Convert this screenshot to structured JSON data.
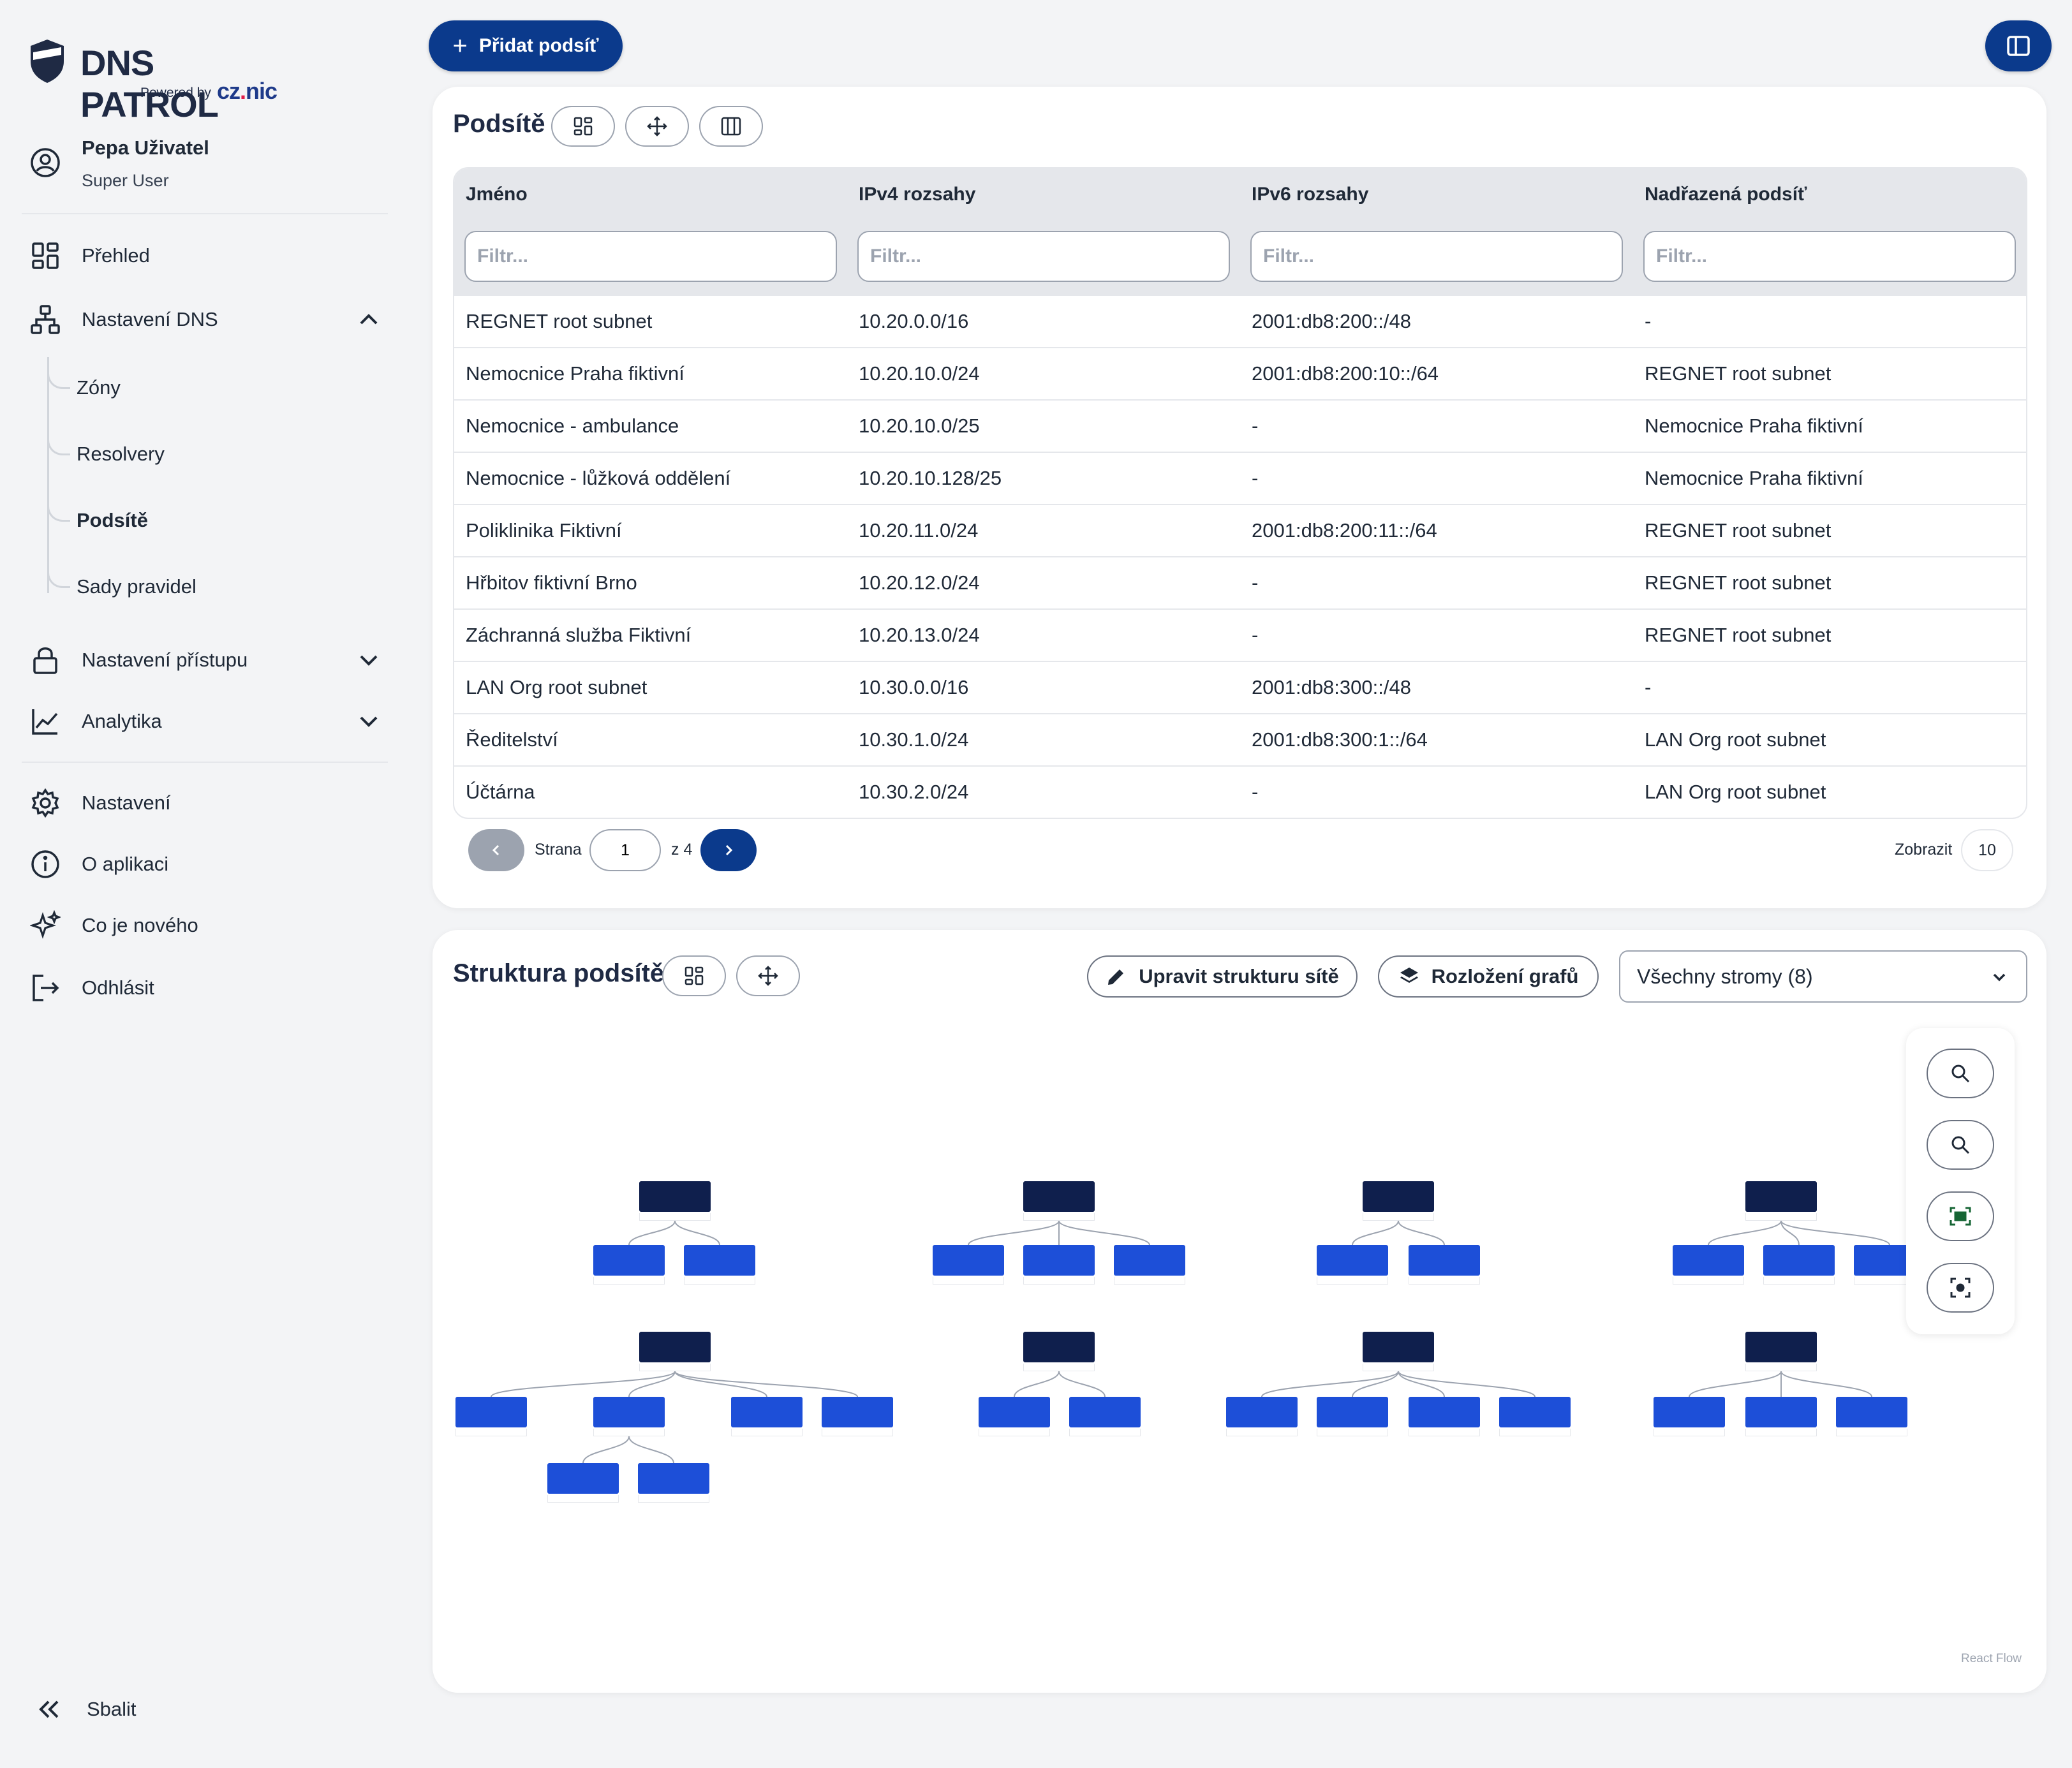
{
  "brand": {
    "name": "DNS PATROL",
    "powered_by": "Powered by",
    "partner_a": "cz",
    "partner_dot": ".",
    "partner_b": "nic"
  },
  "user": {
    "name": "Pepa Uživatel",
    "role": "Super User"
  },
  "nav": {
    "overview": "Přehled",
    "dns_settings": "Nastavení DNS",
    "dns_sub": [
      "Zóny",
      "Resolvery",
      "Podsítě",
      "Sady pravidel"
    ],
    "access": "Nastavení přístupu",
    "analytics": "Analytika",
    "settings": "Nastavení",
    "about": "O aplikaci",
    "whats_new": "Co je nového",
    "logout": "Odhlásit",
    "collapse": "Sbalit"
  },
  "toolbar": {
    "add_subnet": "Přidat podsíť"
  },
  "subnets": {
    "title": "Podsítě",
    "columns": [
      "Jméno",
      "IPv4 rozsahy",
      "IPv6 rozsahy",
      "Nadřazená podsíť"
    ],
    "filter_placeholder": "Filtr...",
    "rows": [
      [
        "REGNET root subnet",
        "10.20.0.0/16",
        "2001:db8:200::/48",
        "-"
      ],
      [
        "Nemocnice Praha fiktivní",
        "10.20.10.0/24",
        "2001:db8:200:10::/64",
        "REGNET root subnet"
      ],
      [
        "Nemocnice - ambulance",
        "10.20.10.0/25",
        "-",
        "Nemocnice Praha fiktivní"
      ],
      [
        "Nemocnice - lůžková oddělení",
        "10.20.10.128/25",
        "-",
        "Nemocnice Praha fiktivní"
      ],
      [
        "Poliklinika Fiktivní",
        "10.20.11.0/24",
        "2001:db8:200:11::/64",
        "REGNET root subnet"
      ],
      [
        "Hřbitov fiktivní Brno",
        "10.20.12.0/24",
        "-",
        "REGNET root subnet"
      ],
      [
        "Záchranná služba Fiktivní",
        "10.20.13.0/24",
        "-",
        "REGNET root subnet"
      ],
      [
        "LAN Org root subnet",
        "10.30.0.0/16",
        "2001:db8:300::/48",
        "-"
      ],
      [
        "Ředitelství",
        "10.30.1.0/24",
        "2001:db8:300:1::/64",
        "LAN Org root subnet"
      ],
      [
        "Účtárna",
        "10.30.2.0/24",
        "-",
        "LAN Org root subnet"
      ]
    ],
    "pager": {
      "page_label": "Strana",
      "page": "1",
      "of_label": "z 4",
      "show_label": "Zobrazit",
      "page_size": "10"
    }
  },
  "structure": {
    "title": "Struktura podsítě",
    "edit_label": "Upravit strukturu sítě",
    "layout_label": "Rozložení grafů",
    "trees_selected": "Všechny stromy (8)",
    "attribution": "React Flow"
  },
  "colors": {
    "primary": "#0b3a8c",
    "node_root": "#0f1f4d",
    "node_child": "#1d4fd8"
  },
  "icons": {
    "overview": "grid-icon",
    "dns": "network-icon",
    "access": "lock-icon",
    "analytics": "chart-icon",
    "settings": "gear-icon",
    "about": "info-icon",
    "whats_new": "sparkle-icon",
    "logout": "logout-icon"
  }
}
